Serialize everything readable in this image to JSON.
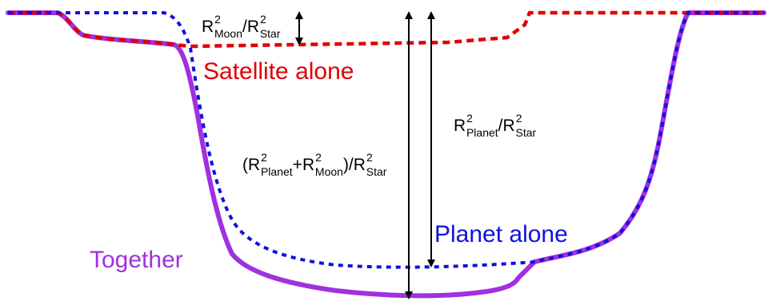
{
  "colors": {
    "satellite": "#e00000",
    "planet": "#1010e0",
    "together": "#a030e0",
    "arrows": "#000000"
  },
  "labels": {
    "satellite_alone": "Satellite alone",
    "planet_alone": "Planet alone",
    "together": "Together"
  },
  "formulas": {
    "moon_depth": {
      "r1": "R",
      "sup1": "2",
      "sub1": "Moon",
      "slash": "/",
      "r2": "R",
      "sup2": "2",
      "sub2": "Star"
    },
    "combined_depth": {
      "open": "(",
      "r1": "R",
      "sup1": "2",
      "sub1": "Planet",
      "plus": "+",
      "r2": "R",
      "sup2": "2",
      "sub2": "Moon",
      "close_slash": ")/",
      "r3": "R",
      "sup3": "2",
      "sub3": "Star"
    },
    "planet_depth": {
      "r1": "R",
      "sup1": "2",
      "sub1": "Planet",
      "slash": "/",
      "r2": "R",
      "sup2": "2",
      "sub2": "Star"
    }
  }
}
